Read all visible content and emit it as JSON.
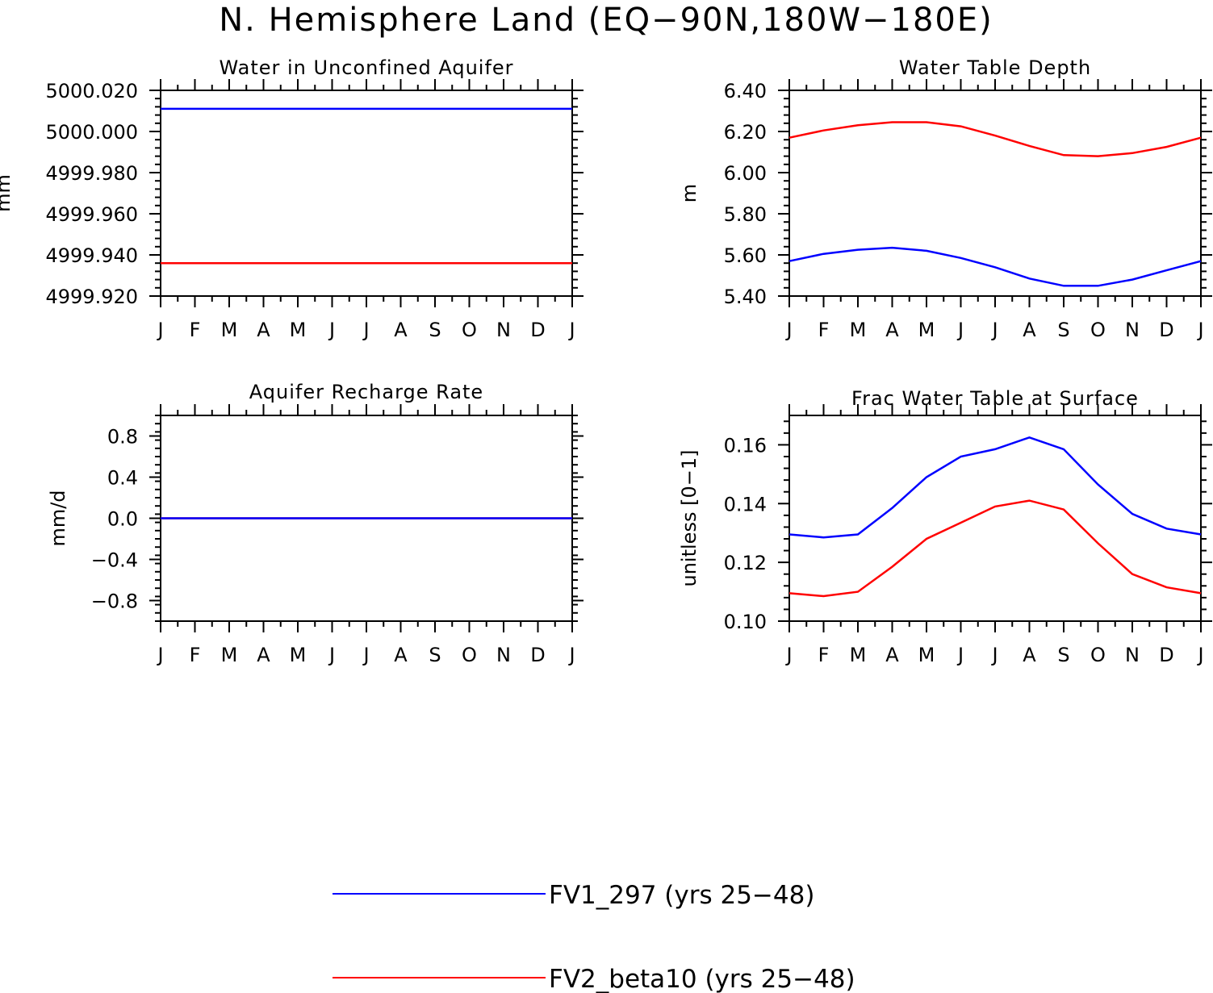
{
  "figure_title": "N. Hemisphere Land (EQ−90N,180W−180E)",
  "legend": [
    {
      "label": "FV1_297 (yrs 25−48)",
      "color": "#0000ff"
    },
    {
      "label": "FV2_beta10 (yrs 25−48)",
      "color": "#ff0000"
    }
  ],
  "chart_data": [
    {
      "type": "line",
      "title": "Water in Unconfined Aquifer",
      "ylabel": "mm",
      "xlabel": "",
      "categories": [
        "J",
        "F",
        "M",
        "A",
        "M",
        "J",
        "J",
        "A",
        "S",
        "O",
        "N",
        "D",
        "J"
      ],
      "ylim": [
        4999.92,
        5000.02
      ],
      "yticks": [
        "5000.020",
        "5000.000",
        "4999.980",
        "4999.960",
        "4999.940",
        "4999.920"
      ],
      "series": [
        {
          "name": "FV1_297 (yrs 25−48)",
          "color": "#0000ff",
          "values": [
            5000.011,
            5000.011,
            5000.011,
            5000.011,
            5000.011,
            5000.011,
            5000.011,
            5000.011,
            5000.011,
            5000.011,
            5000.011,
            5000.011,
            5000.011
          ]
        },
        {
          "name": "FV2_beta10 (yrs 25−48)",
          "color": "#ff0000",
          "values": [
            4999.936,
            4999.936,
            4999.936,
            4999.936,
            4999.936,
            4999.936,
            4999.936,
            4999.936,
            4999.936,
            4999.936,
            4999.936,
            4999.936,
            4999.936
          ]
        }
      ]
    },
    {
      "type": "line",
      "title": "Water Table Depth",
      "ylabel": "m",
      "xlabel": "",
      "categories": [
        "J",
        "F",
        "M",
        "A",
        "M",
        "J",
        "J",
        "A",
        "S",
        "O",
        "N",
        "D",
        "J"
      ],
      "ylim": [
        5.4,
        6.4
      ],
      "yticks": [
        "6.40",
        "6.20",
        "6.00",
        "5.80",
        "5.60",
        "5.40"
      ],
      "series": [
        {
          "name": "FV1_297 (yrs 25−48)",
          "color": "#0000ff",
          "values": [
            5.57,
            5.605,
            5.625,
            5.635,
            5.62,
            5.585,
            5.54,
            5.485,
            5.45,
            5.45,
            5.48,
            5.525,
            5.57
          ]
        },
        {
          "name": "FV2_beta10 (yrs 25−48)",
          "color": "#ff0000",
          "values": [
            6.17,
            6.205,
            6.23,
            6.245,
            6.245,
            6.225,
            6.18,
            6.13,
            6.085,
            6.08,
            6.095,
            6.125,
            6.17
          ]
        }
      ]
    },
    {
      "type": "line",
      "title": "Aquifer Recharge Rate",
      "ylabel": "mm/d",
      "xlabel": "",
      "categories": [
        "J",
        "F",
        "M",
        "A",
        "M",
        "J",
        "J",
        "A",
        "S",
        "O",
        "N",
        "D",
        "J"
      ],
      "ylim": [
        -1.0,
        1.0
      ],
      "yticks": [
        "0.8",
        "0.4",
        "0.0",
        "−0.4",
        "−0.8"
      ],
      "series": [
        {
          "name": "FV2_beta10 (yrs 25−48)",
          "color": "#ff0000",
          "values": [
            0,
            0,
            0,
            0,
            0,
            0,
            0,
            0,
            0,
            0,
            0,
            0,
            0
          ]
        },
        {
          "name": "FV1_297 (yrs 25−48)",
          "color": "#0000ff",
          "values": [
            0,
            0,
            0,
            0,
            0,
            0,
            0,
            0,
            0,
            0,
            0,
            0,
            0
          ]
        }
      ]
    },
    {
      "type": "line",
      "title": "Frac Water Table at Surface",
      "ylabel": "unitless [0−1]",
      "xlabel": "",
      "categories": [
        "J",
        "F",
        "M",
        "A",
        "M",
        "J",
        "J",
        "A",
        "S",
        "O",
        "N",
        "D",
        "J"
      ],
      "ylim": [
        0.1,
        0.17
      ],
      "yticks": [
        "0.16",
        "0.14",
        "0.12",
        "0.10"
      ],
      "series": [
        {
          "name": "FV1_297 (yrs 25−48)",
          "color": "#0000ff",
          "values": [
            0.1295,
            0.1285,
            0.1295,
            0.1385,
            0.149,
            0.156,
            0.1585,
            0.1625,
            0.1585,
            0.1465,
            0.1365,
            0.1315,
            0.1295
          ]
        },
        {
          "name": "FV2_beta10 (yrs 25−48)",
          "color": "#ff0000",
          "values": [
            0.1095,
            0.1085,
            0.11,
            0.1185,
            0.128,
            0.1335,
            0.139,
            0.141,
            0.138,
            0.1265,
            0.116,
            0.1115,
            0.1095
          ]
        }
      ]
    }
  ]
}
